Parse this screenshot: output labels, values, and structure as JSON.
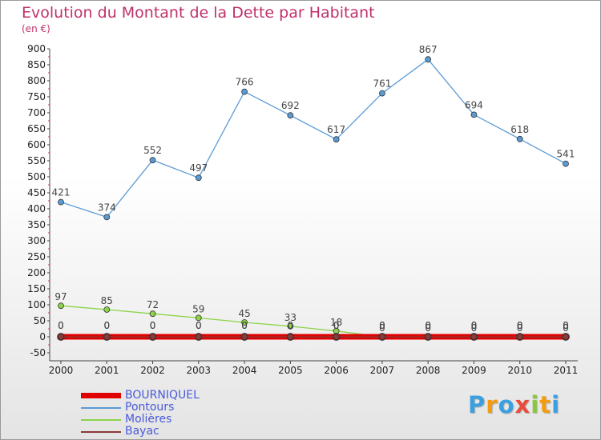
{
  "chart_data": {
    "type": "line",
    "title": "Evolution du Montant de la Dette par Habitant",
    "subtitle": "(en €)",
    "categories": [
      "2000",
      "2001",
      "2002",
      "2003",
      "2004",
      "2005",
      "2006",
      "2007",
      "2008",
      "2009",
      "2010",
      "2011"
    ],
    "ylim": [
      -50,
      900
    ],
    "yticks": [
      -50,
      0,
      50,
      100,
      150,
      200,
      250,
      300,
      350,
      400,
      450,
      500,
      550,
      600,
      650,
      700,
      750,
      800,
      850,
      900
    ],
    "grid": false,
    "legend_position": "bottom-left",
    "series": [
      {
        "name": "BOURNIQUEL",
        "color": "#e00000",
        "values": [
          0,
          0,
          0,
          0,
          0,
          0,
          0,
          0,
          0,
          0,
          0,
          0
        ],
        "labels": [
          "0",
          "0",
          "0",
          "0",
          "0",
          "0",
          "0",
          "0",
          "0",
          "0",
          "0",
          "0"
        ],
        "show_labels": true
      },
      {
        "name": "Pontours",
        "color": "#5b9bd5",
        "values": [
          421,
          374,
          552,
          497,
          766,
          692,
          617,
          761,
          867,
          694,
          618,
          541
        ],
        "labels": [
          "421",
          "374",
          "552",
          "497",
          "766",
          "692",
          "617",
          "761",
          "867",
          "694",
          "618",
          "541"
        ],
        "show_labels": true
      },
      {
        "name": "Molières",
        "color": "#8cd34a",
        "values": [
          97,
          85,
          72,
          59,
          45,
          33,
          18,
          0,
          0,
          0,
          0,
          0
        ],
        "labels": [
          "97",
          "85",
          "72",
          "59",
          "45",
          "33",
          "18",
          "0",
          "0",
          "0",
          "0",
          "0"
        ],
        "show_labels": true
      },
      {
        "name": "Bayac",
        "color": "#8b3a3a",
        "values": [
          0,
          0,
          0,
          0,
          0,
          0,
          0,
          0,
          0,
          0,
          0,
          0
        ],
        "labels": [
          "0",
          "0",
          "0",
          "0",
          "0",
          "0",
          "0",
          "0",
          "0",
          "0",
          "0",
          "0"
        ],
        "show_labels": true
      }
    ]
  },
  "logo": {
    "letters": [
      "P",
      "r",
      "o",
      "x",
      "i",
      "t",
      "i"
    ],
    "colors": [
      "#3aa0e0",
      "#f39c12",
      "#3aa0e0",
      "#e74c3c",
      "#8cc63f",
      "#f39c12",
      "#3aa0e0"
    ]
  }
}
